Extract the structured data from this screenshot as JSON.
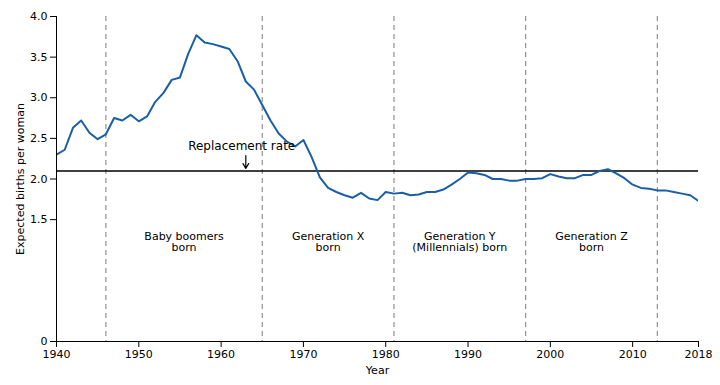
{
  "chart_data": {
    "type": "line",
    "xlabel": "Year",
    "ylabel": "Expected births per woman",
    "x": [
      1940,
      1941,
      1942,
      1943,
      1944,
      1945,
      1946,
      1947,
      1948,
      1949,
      1950,
      1951,
      1952,
      1953,
      1954,
      1955,
      1956,
      1957,
      1958,
      1959,
      1960,
      1961,
      1962,
      1963,
      1964,
      1965,
      1966,
      1967,
      1968,
      1969,
      1970,
      1971,
      1972,
      1973,
      1974,
      1975,
      1976,
      1977,
      1978,
      1979,
      1980,
      1981,
      1982,
      1983,
      1984,
      1985,
      1986,
      1987,
      1988,
      1989,
      1990,
      1991,
      1992,
      1993,
      1994,
      1995,
      1996,
      1997,
      1998,
      1999,
      2000,
      2001,
      2002,
      2003,
      2004,
      2005,
      2006,
      2007,
      2008,
      2009,
      2010,
      2011,
      2012,
      2013,
      2014,
      2015,
      2016,
      2017,
      2018
    ],
    "values": [
      2.3,
      2.36,
      2.63,
      2.72,
      2.57,
      2.49,
      2.55,
      2.75,
      2.72,
      2.79,
      2.71,
      2.77,
      2.95,
      3.06,
      3.22,
      3.25,
      3.54,
      3.77,
      3.68,
      3.66,
      3.63,
      3.6,
      3.45,
      3.2,
      3.1,
      2.91,
      2.72,
      2.56,
      2.46,
      2.4,
      2.48,
      2.27,
      2.02,
      1.89,
      1.84,
      1.8,
      1.77,
      1.83,
      1.76,
      1.74,
      1.84,
      1.82,
      1.83,
      1.8,
      1.81,
      1.84,
      1.84,
      1.87,
      1.93,
      2.0,
      2.08,
      2.07,
      2.05,
      2.0,
      2.0,
      1.98,
      1.98,
      2.0,
      2.0,
      2.01,
      2.06,
      2.03,
      2.01,
      2.01,
      2.05,
      2.05,
      2.1,
      2.12,
      2.07,
      2.01,
      1.93,
      1.89,
      1.88,
      1.86,
      1.86,
      1.84,
      1.82,
      1.8,
      1.73
    ],
    "color": "#1a5ea8",
    "xlim": [
      1940,
      2018
    ],
    "ylim": [
      0,
      4.0
    ],
    "xticks": [
      1940,
      1950,
      1960,
      1970,
      1980,
      1990,
      2000,
      2010,
      2018
    ],
    "yticks": [
      0,
      1.5,
      {
        "value": 2.0,
        "label": "2.0"
      },
      2.5,
      {
        "value": 3.0,
        "label": "3.0"
      },
      3.5,
      {
        "value": 4.0,
        "label": "4.0"
      }
    ],
    "grid": false,
    "hlines": [
      {
        "y": 2.1,
        "color": "#000000"
      }
    ],
    "vlines": {
      "x": [
        1946,
        1965,
        1981,
        1997,
        2013
      ],
      "color": "#909090",
      "line_style": "dashed"
    },
    "texts": [
      {
        "text": "Baby boomers\nborn",
        "x": 1955.5,
        "y": 1.35
      },
      {
        "text": "Generation X\nborn",
        "x": 1973,
        "y": 1.35
      },
      {
        "text": "Generation Y\n(Millennials) born",
        "x": 1989,
        "y": 1.35
      },
      {
        "text": "Generation Z\nborn",
        "x": 2005,
        "y": 1.35
      }
    ],
    "annotations": [
      {
        "text": "Replacement rate",
        "x": 1956,
        "y": 2.4,
        "arrow_x": 1963,
        "arrow_y": 2.13
      }
    ]
  }
}
